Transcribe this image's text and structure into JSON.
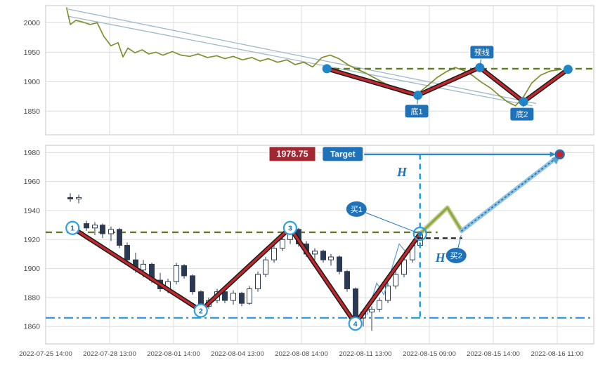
{
  "colors": {
    "grid": "#dcdcdc",
    "border": "#c4c4c4",
    "axis_text": "#4d4d4d",
    "price_line": "#7f8f2e",
    "channel_line": "#9db9c9",
    "zigzag": "#c1272d",
    "zigzag_outline": "#1c1c1c",
    "pivot_dot": "#1f86c8",
    "pivot_ring": "#2e9fe0",
    "neckline": "#5f7d1f",
    "support": "#1e9be0",
    "candle_bear": "#2b3a52",
    "label_blue": "#1f72b8",
    "price_box": "#a22730",
    "arrow_band": "#8fc3e2",
    "arrow_core": "#1f72b8",
    "arrow_head": "#5aa0cf",
    "green_segment": "#8da83b",
    "green_shadow": "#c3d09a",
    "black_dash": "#141414",
    "micro_wave": "#5b9bd5"
  },
  "chart_data": [
    {
      "type": "line",
      "name": "overview-chart",
      "title": "",
      "xlabel": "",
      "ylabel": "",
      "ylim": [
        1810,
        2029
      ],
      "yticks": [
        2000,
        1950,
        1900,
        1850
      ],
      "legend": false,
      "grid": true,
      "series": [
        {
          "name": "price",
          "points": [
            [
              0.038,
              2026
            ],
            [
              0.045,
              1997
            ],
            [
              0.055,
              2004
            ],
            [
              0.068,
              2001
            ],
            [
              0.081,
              1997
            ],
            [
              0.094,
              2000
            ],
            [
              0.106,
              1977
            ],
            [
              0.119,
              1961
            ],
            [
              0.132,
              1966
            ],
            [
              0.141,
              1942
            ],
            [
              0.15,
              1957
            ],
            [
              0.163,
              1949
            ],
            [
              0.176,
              1954
            ],
            [
              0.188,
              1947
            ],
            [
              0.201,
              1950
            ],
            [
              0.214,
              1945
            ],
            [
              0.231,
              1951
            ],
            [
              0.247,
              1945
            ],
            [
              0.263,
              1943
            ],
            [
              0.278,
              1947
            ],
            [
              0.295,
              1941
            ],
            [
              0.312,
              1944
            ],
            [
              0.327,
              1939
            ],
            [
              0.342,
              1943
            ],
            [
              0.359,
              1937
            ],
            [
              0.376,
              1941
            ],
            [
              0.391,
              1935
            ],
            [
              0.406,
              1939
            ],
            [
              0.423,
              1933
            ],
            [
              0.44,
              1937
            ],
            [
              0.455,
              1929
            ],
            [
              0.471,
              1933
            ],
            [
              0.487,
              1925
            ],
            [
              0.504,
              1941
            ],
            [
              0.519,
              1945
            ],
            [
              0.535,
              1939
            ],
            [
              0.551,
              1929
            ],
            [
              0.568,
              1921
            ],
            [
              0.583,
              1915
            ],
            [
              0.599,
              1907
            ],
            [
              0.615,
              1899
            ],
            [
              0.632,
              1891
            ],
            [
              0.65,
              1881
            ],
            [
              0.667,
              1877
            ],
            [
              0.683,
              1883
            ],
            [
              0.699,
              1895
            ],
            [
              0.714,
              1907
            ],
            [
              0.731,
              1917
            ],
            [
              0.747,
              1924
            ],
            [
              0.763,
              1919
            ],
            [
              0.778,
              1911
            ],
            [
              0.795,
              1899
            ],
            [
              0.812,
              1889
            ],
            [
              0.827,
              1877
            ],
            [
              0.842,
              1866
            ],
            [
              0.857,
              1859
            ],
            [
              0.872,
              1875
            ],
            [
              0.887,
              1898
            ],
            [
              0.903,
              1911
            ],
            [
              0.92,
              1918
            ],
            [
              0.942,
              1921
            ]
          ]
        }
      ],
      "channel_lines": [
        [
          [
            0.041,
            2023
          ],
          [
            0.895,
            1863
          ]
        ],
        [
          [
            0.041,
            2011
          ],
          [
            0.888,
            1859
          ]
        ]
      ],
      "neckline": {
        "price": 1922,
        "from": 0.505,
        "to": 1.0
      },
      "zigzag": [
        [
          0.513,
          1922
        ],
        [
          0.679,
          1877
        ],
        [
          0.792,
          1924
        ],
        [
          0.872,
          1866
        ],
        [
          0.953,
          1921
        ]
      ],
      "annotations": [
        {
          "kind": "flag",
          "text": "预线",
          "x": 0.796,
          "price": 1950,
          "ax": 0.792,
          "aprice": 1924,
          "name": "label-neckline-flag"
        },
        {
          "kind": "flag",
          "text": "底1",
          "x": 0.677,
          "price": 1850,
          "ax": 0.679,
          "aprice": 1877,
          "name": "label-bottom1-flag"
        },
        {
          "kind": "flag",
          "text": "底2",
          "x": 0.869,
          "price": 1845,
          "ax": 0.872,
          "aprice": 1866,
          "name": "label-bottom2-flag"
        }
      ]
    },
    {
      "type": "candlestick",
      "name": "main-chart",
      "title": "",
      "xlabel": "",
      "ylabel": "",
      "ylim": [
        1848,
        1985
      ],
      "yticks": [
        1980,
        1960,
        1940,
        1920,
        1900,
        1880,
        1860
      ],
      "legend": false,
      "grid": true,
      "x_labels": [
        "2022-07-25 14:00",
        "2022-07-28 13:00",
        "2022-08-01 14:00",
        "2022-08-04 13:00",
        "2022-08-08 14:00",
        "2022-08-11 13:00",
        "2022-08-15 09:00",
        "2022-08-15 14:00",
        "2022-08-16 11:00"
      ],
      "candles": [
        [
          0.0449,
          1949,
          1952,
          1946,
          1948
        ],
        [
          0.0603,
          1948,
          1951,
          1945,
          1949
        ],
        [
          0.0744,
          1931,
          1933,
          1926,
          1928
        ],
        [
          0.0897,
          1928,
          1932,
          1923,
          1930
        ],
        [
          0.1038,
          1930,
          1931,
          1921,
          1924
        ],
        [
          0.1192,
          1924,
          1929,
          1919,
          1927
        ],
        [
          0.1346,
          1927,
          1928,
          1914,
          1916
        ],
        [
          0.1487,
          1916,
          1918,
          1904,
          1906
        ],
        [
          0.1641,
          1906,
          1911,
          1897,
          1899
        ],
        [
          0.1782,
          1899,
          1906,
          1894,
          1903
        ],
        [
          0.1936,
          1903,
          1904,
          1890,
          1892
        ],
        [
          0.209,
          1892,
          1897,
          1884,
          1886
        ],
        [
          0.2231,
          1886,
          1893,
          1883,
          1891
        ],
        [
          0.2385,
          1891,
          1904,
          1889,
          1902
        ],
        [
          0.2526,
          1902,
          1903,
          1893,
          1895
        ],
        [
          0.2679,
          1895,
          1896,
          1882,
          1884
        ],
        [
          0.2833,
          1884,
          1885,
          1871,
          1874
        ],
        [
          0.2974,
          1874,
          1880,
          1872,
          1878
        ],
        [
          0.3128,
          1878,
          1886,
          1876,
          1884
        ],
        [
          0.3269,
          1884,
          1886,
          1876,
          1878
        ],
        [
          0.3423,
          1878,
          1885,
          1875,
          1883
        ],
        [
          0.3577,
          1883,
          1884,
          1874,
          1876
        ],
        [
          0.3718,
          1876,
          1888,
          1875,
          1886
        ],
        [
          0.3872,
          1886,
          1898,
          1884,
          1896
        ],
        [
          0.4013,
          1896,
          1908,
          1894,
          1906
        ],
        [
          0.4167,
          1906,
          1916,
          1904,
          1914
        ],
        [
          0.4321,
          1914,
          1922,
          1912,
          1920
        ],
        [
          0.4462,
          1920,
          1929,
          1917,
          1927
        ],
        [
          0.4615,
          1927,
          1928,
          1915,
          1917
        ],
        [
          0.4756,
          1917,
          1919,
          1908,
          1910
        ],
        [
          0.491,
          1910,
          1914,
          1906,
          1912
        ],
        [
          0.5064,
          1912,
          1913,
          1904,
          1906
        ],
        [
          0.5205,
          1906,
          1910,
          1902,
          1908
        ],
        [
          0.5359,
          1908,
          1909,
          1896,
          1898
        ],
        [
          0.55,
          1898,
          1899,
          1884,
          1886
        ],
        [
          0.5654,
          1886,
          1887,
          1862,
          1866
        ],
        [
          0.5795,
          1866,
          1872,
          1860,
          1870
        ],
        [
          0.5949,
          1870,
          1874,
          1857,
          1872
        ],
        [
          0.609,
          1872,
          1880,
          1870,
          1878
        ],
        [
          0.6244,
          1878,
          1890,
          1876,
          1888
        ],
        [
          0.6385,
          1888,
          1898,
          1886,
          1896
        ],
        [
          0.6538,
          1896,
          1908,
          1894,
          1906
        ],
        [
          0.6692,
          1906,
          1918,
          1904,
          1916
        ],
        [
          0.6833,
          1916,
          1926,
          1914,
          1924
        ]
      ],
      "zigzag": [
        [
          0.049,
          1928
        ],
        [
          0.283,
          1871
        ],
        [
          0.446,
          1928
        ],
        [
          0.565,
          1862
        ],
        [
          0.683,
          1924
        ]
      ],
      "pivot_numbers": [
        "1",
        "2",
        "3",
        "4"
      ],
      "neckline": {
        "price": 1925,
        "from": 0.0,
        "to": 0.715
      },
      "support": {
        "price": 1866,
        "from": 0.0,
        "to": 1.0
      },
      "vline": {
        "x": 0.683,
        "top": 1979,
        "bottom": 1866
      },
      "black_dash": {
        "price": 1921,
        "from": 0.678,
        "to": 0.76
      },
      "green_segment": [
        [
          0.683,
          1924
        ],
        [
          0.733,
          1942
        ],
        [
          0.759,
          1926
        ]
      ],
      "micro_wave": [
        [
          0.586,
          1868
        ],
        [
          0.604,
          1890
        ],
        [
          0.617,
          1882
        ],
        [
          0.645,
          1917
        ],
        [
          0.66,
          1910
        ],
        [
          0.681,
          1926
        ]
      ],
      "target_arrow": {
        "from": [
          0.759,
          1926
        ],
        "to": [
          0.934,
          1977
        ]
      },
      "horiz_arrow": {
        "from_x": 0.581,
        "to_x": 0.924,
        "price": 1978.75
      },
      "target_point": {
        "x": 0.938,
        "price": 1978.75
      },
      "price_tag": {
        "text": "1978.75",
        "x": 0.45,
        "price": 1979
      },
      "target_tag": {
        "text": "Target",
        "x": 0.542,
        "price": 1979
      },
      "buy1": {
        "text": "买1",
        "x": 0.567,
        "price": 1941,
        "ax": 0.676,
        "aprice": 1925
      },
      "buy2": {
        "text": "买2",
        "x": 0.749,
        "price": 1909,
        "ax": 0.758,
        "aprice": 1923
      },
      "h_labels": [
        {
          "text": "H",
          "x": 0.65,
          "price": 1966
        },
        {
          "text": "H",
          "x": 0.72,
          "price": 1907
        }
      ]
    }
  ]
}
